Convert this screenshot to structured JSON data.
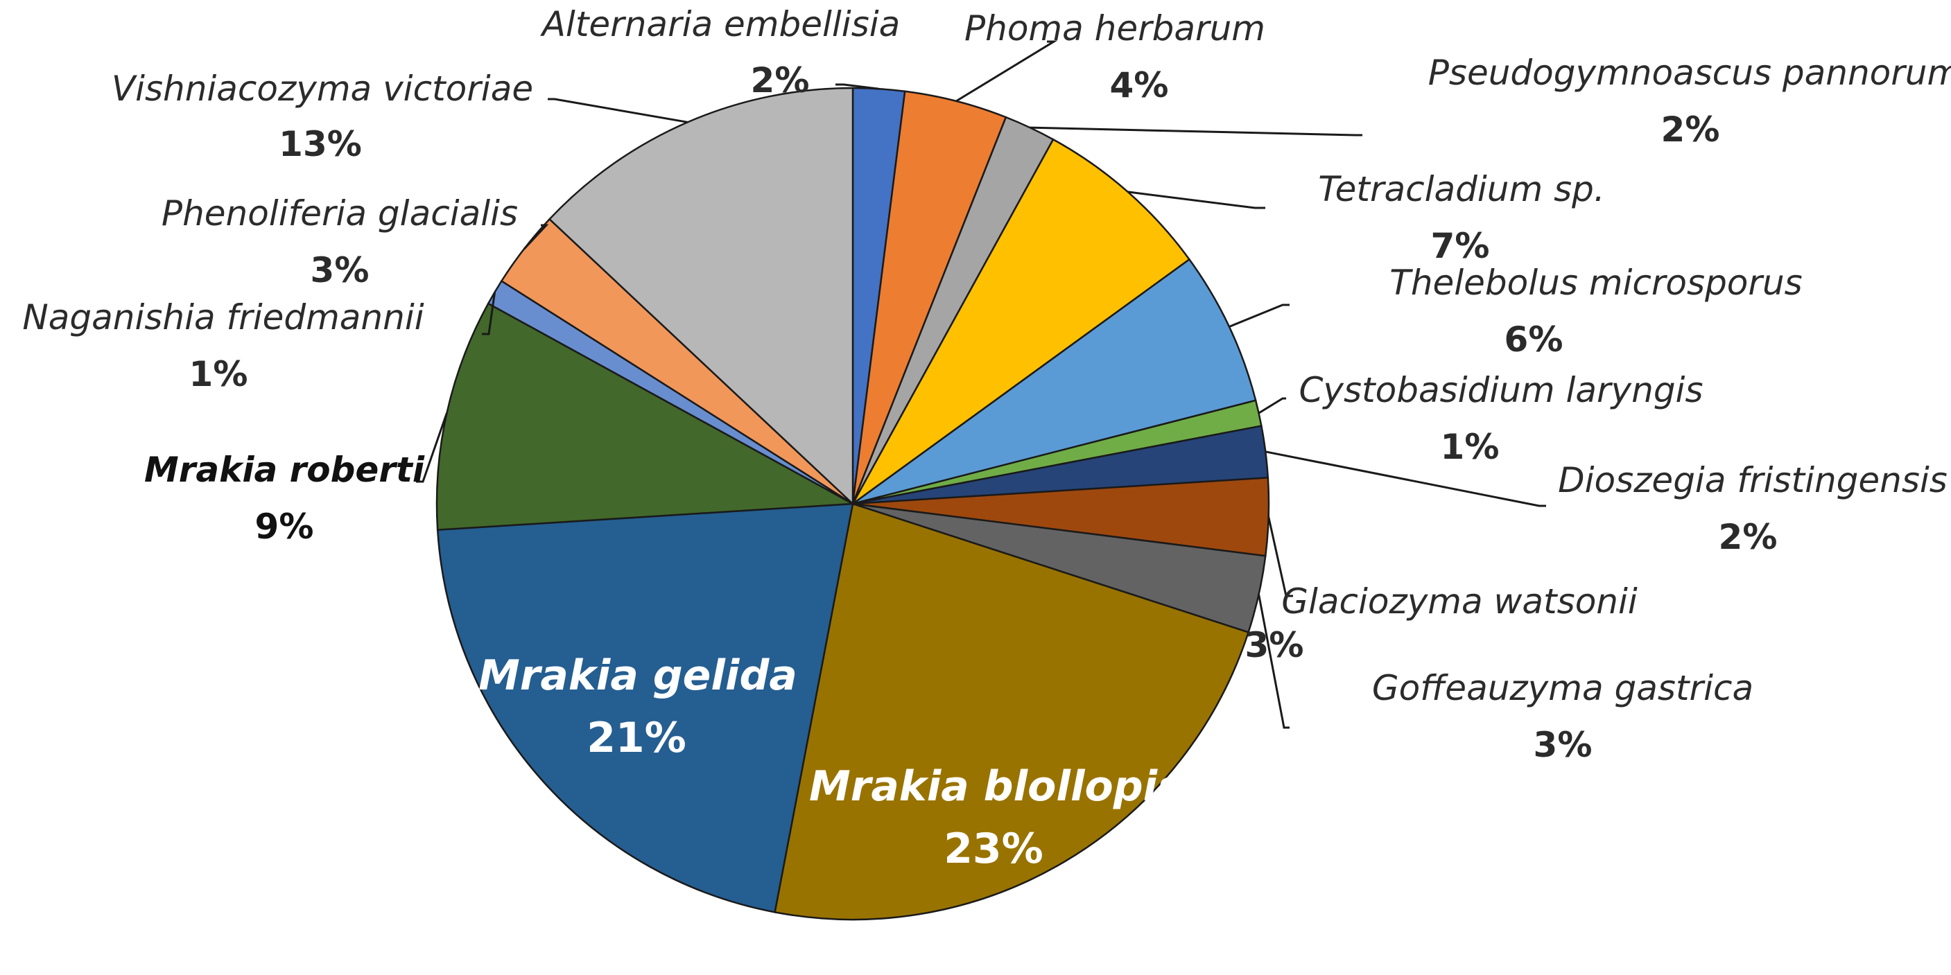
{
  "chart_data": {
    "type": "pie",
    "slices": [
      {
        "label": "Alternaria embellisia",
        "pct_label": "2%",
        "value": 2,
        "color": "#4472c4"
      },
      {
        "label": "Phoma herbarum",
        "pct_label": "4%",
        "value": 4,
        "color": "#ed7d31"
      },
      {
        "label": "Pseudogymnoascus pannorum",
        "pct_label": "2%",
        "value": 2,
        "color": "#a5a5a5"
      },
      {
        "label": "Tetracladium sp.",
        "pct_label": "7%",
        "value": 7,
        "color": "#ffc000"
      },
      {
        "label": "Thelebolus microsporus",
        "pct_label": "6%",
        "value": 6,
        "color": "#5b9bd5"
      },
      {
        "label": "Cystobasidium laryngis",
        "pct_label": "1%",
        "value": 1,
        "color": "#70ad47"
      },
      {
        "label": "Dioszegia fristingensis",
        "pct_label": "2%",
        "value": 2,
        "color": "#264478"
      },
      {
        "label": "Glaciozyma watsonii",
        "pct_label": "3%",
        "value": 3,
        "color": "#9e480e"
      },
      {
        "label": "Goffeauzyma gastrica",
        "pct_label": "3%",
        "value": 3,
        "color": "#636363"
      },
      {
        "label": "Mrakia blollopis",
        "pct_label": "23%",
        "value": 23,
        "color": "#997300"
      },
      {
        "label": "Mrakia gelida",
        "pct_label": "21%",
        "value": 21,
        "color": "#255e91"
      },
      {
        "label": "Mrakia roberti",
        "pct_label": "9%",
        "value": 9,
        "color": "#43682b"
      },
      {
        "label": "Naganishia friedmannii",
        "pct_label": "1%",
        "value": 1,
        "color": "#698ed0"
      },
      {
        "label": "Phenoliferia glacialis",
        "pct_label": "3%",
        "value": 3,
        "color": "#f1975a"
      },
      {
        "label": "Vishniacozyma victoriae",
        "pct_label": "13%",
        "value": 13,
        "color": "#b7b7b7"
      }
    ]
  }
}
